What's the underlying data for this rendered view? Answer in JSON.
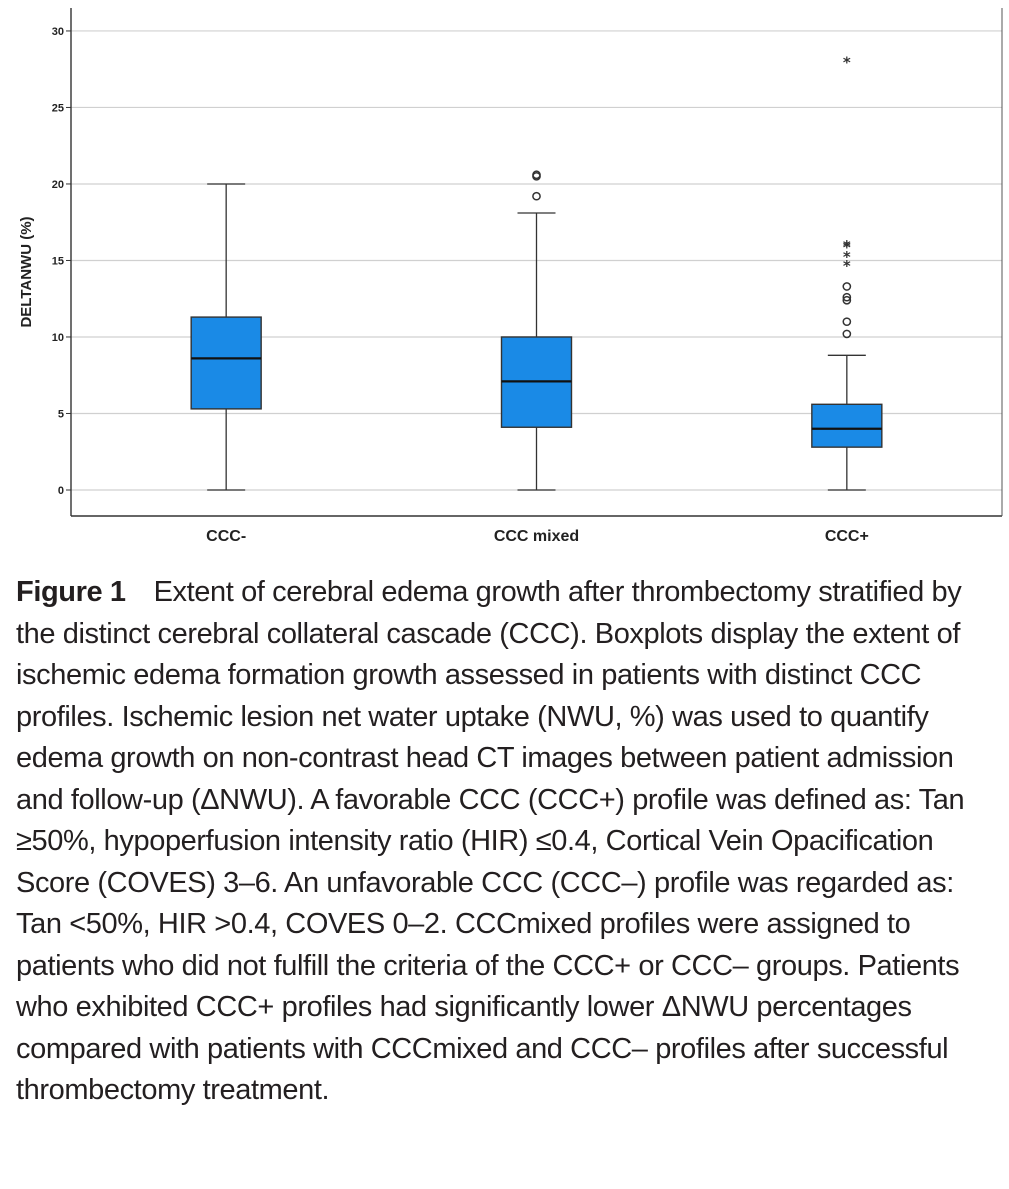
{
  "chart_data": {
    "type": "boxplot",
    "title": "",
    "xlabel": "",
    "ylabel": "DELTANWU (%)",
    "ylim": [
      -1.7,
      31.5
    ],
    "yticks": [
      0,
      5,
      10,
      15,
      20,
      25,
      30
    ],
    "grid": true,
    "box_color": "#1a8ae6",
    "categories": [
      "CCC-",
      "CCC mixed",
      "CCC+"
    ],
    "boxes": [
      {
        "name": "CCC-",
        "whisker_low": 0,
        "q1": 5.3,
        "median": 8.6,
        "q3": 11.3,
        "whisker_high": 20,
        "outliers": [],
        "extremes": []
      },
      {
        "name": "CCC mixed",
        "whisker_low": 0,
        "q1": 4.1,
        "median": 7.1,
        "q3": 10.0,
        "whisker_high": 18.1,
        "outliers": [
          19.2,
          20.5,
          20.6
        ],
        "extremes": []
      },
      {
        "name": "CCC+",
        "whisker_low": 0,
        "q1": 2.8,
        "median": 4.0,
        "q3": 5.6,
        "whisker_high": 8.8,
        "outliers": [
          10.2,
          11.0,
          12.4,
          12.6,
          13.3
        ],
        "extremes": [
          14.7,
          15.3,
          15.9,
          16.0,
          28.0
        ]
      }
    ]
  },
  "caption": {
    "label": "Figure 1",
    "text": "Extent of cerebral edema growth after thrombectomy stratified by the distinct cerebral collateral cascade (CCC). Boxplots display the extent of ischemic edema formation growth assessed in patients with distinct CCC profiles. Ischemic lesion net water uptake (NWU, %) was used to quantify edema growth on non-contrast head CT images between patient admission and follow-up (ΔNWU). A favorable CCC (CCC+) profile was defined as: Tan ≥50%, hypoperfusion intensity ratio (HIR) ≤0.4, Cortical Vein Opacification Score (COVES) 3–6. An unfavorable CCC (CCC–) profile was regarded as: Tan <50%, HIR >0.4, COVES 0–2. CCCmixed profiles were assigned to patients who did not fulfill the criteria of the CCC+ or CCC– groups. Patients who exhibited CCC+ profiles had significantly lower ΔNWU percentages compared with patients with CCCmixed and CCC– profiles after successful thrombectomy treatment."
  }
}
